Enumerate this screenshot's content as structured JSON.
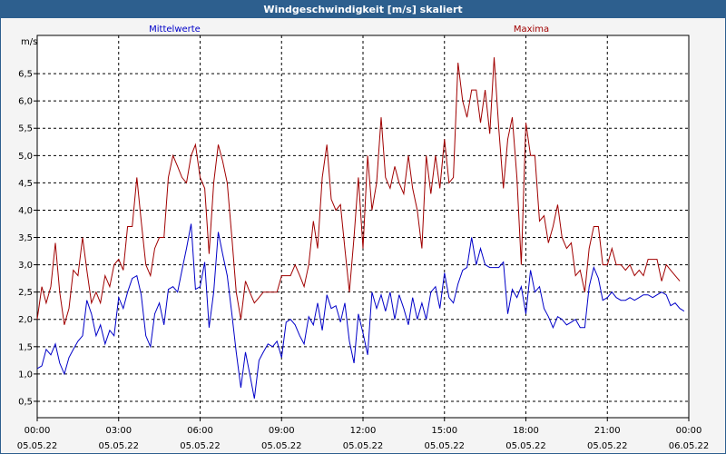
{
  "window": {
    "title": "Windgeschwindigkeit [m/s] skaliert"
  },
  "colors": {
    "title_bar": "#2d5f8e",
    "mean": "#0000c8",
    "max": "#a00000",
    "grid": "#000000"
  },
  "chart_data": {
    "type": "line",
    "title": "Windgeschwindigkeit [m/s] skaliert",
    "ylabel": "m/s",
    "xlabel": "",
    "ylim": [
      0.2,
      7.2
    ],
    "xlim_hours": [
      0,
      24
    ],
    "grid": true,
    "legend_position": "top",
    "x_ticks": [
      {
        "hour": 0,
        "time": "00:00",
        "date": "05.05.22"
      },
      {
        "hour": 3,
        "time": "03:00",
        "date": "05.05.22"
      },
      {
        "hour": 6,
        "time": "06:00",
        "date": "05.05.22"
      },
      {
        "hour": 9,
        "time": "09:00",
        "date": "05.05.22"
      },
      {
        "hour": 12,
        "time": "12:00",
        "date": "05.05.22"
      },
      {
        "hour": 15,
        "time": "15:00",
        "date": "05.05.22"
      },
      {
        "hour": 18,
        "time": "18:00",
        "date": "05.05.22"
      },
      {
        "hour": 21,
        "time": "21:00",
        "date": "05.05.22"
      },
      {
        "hour": 24,
        "time": "00:00",
        "date": "06.05.22"
      }
    ],
    "y_ticks": [
      0.5,
      1.0,
      1.5,
      2.0,
      2.5,
      3.0,
      3.5,
      4.0,
      4.5,
      5.0,
      5.5,
      6.0,
      6.5
    ],
    "y_tick_labels": [
      "0,5",
      "1,0",
      "1,5",
      "2,0",
      "2,5",
      "3,0",
      "3,5",
      "4,0",
      "4,5",
      "5,0",
      "5,5",
      "6,0",
      "6,5"
    ],
    "series": [
      {
        "name": "Mittelwerte",
        "color": "#0000c8",
        "points": [
          [
            0.0,
            1.1
          ],
          [
            0.17,
            1.15
          ],
          [
            0.33,
            1.45
          ],
          [
            0.5,
            1.35
          ],
          [
            0.67,
            1.55
          ],
          [
            0.83,
            1.2
          ],
          [
            1.0,
            1.0
          ],
          [
            1.17,
            1.3
          ],
          [
            1.33,
            1.45
          ],
          [
            1.5,
            1.6
          ],
          [
            1.67,
            1.7
          ],
          [
            1.83,
            2.35
          ],
          [
            2.0,
            2.1
          ],
          [
            2.17,
            1.7
          ],
          [
            2.33,
            1.9
          ],
          [
            2.5,
            1.55
          ],
          [
            2.67,
            1.8
          ],
          [
            2.83,
            1.7
          ],
          [
            3.0,
            2.4
          ],
          [
            3.17,
            2.2
          ],
          [
            3.33,
            2.5
          ],
          [
            3.5,
            2.75
          ],
          [
            3.67,
            2.8
          ],
          [
            3.83,
            2.45
          ],
          [
            4.0,
            1.7
          ],
          [
            4.17,
            1.5
          ],
          [
            4.33,
            2.1
          ],
          [
            4.5,
            2.3
          ],
          [
            4.67,
            1.9
          ],
          [
            4.83,
            2.55
          ],
          [
            5.0,
            2.6
          ],
          [
            5.17,
            2.5
          ],
          [
            5.33,
            2.9
          ],
          [
            5.5,
            3.3
          ],
          [
            5.67,
            3.75
          ],
          [
            5.83,
            2.55
          ],
          [
            6.0,
            2.6
          ],
          [
            6.17,
            3.05
          ],
          [
            6.33,
            1.85
          ],
          [
            6.5,
            2.5
          ],
          [
            6.67,
            3.6
          ],
          [
            6.83,
            3.2
          ],
          [
            7.0,
            2.8
          ],
          [
            7.17,
            2.1
          ],
          [
            7.33,
            1.4
          ],
          [
            7.5,
            0.75
          ],
          [
            7.67,
            1.4
          ],
          [
            7.83,
            1.0
          ],
          [
            8.0,
            0.55
          ],
          [
            8.17,
            1.25
          ],
          [
            8.33,
            1.4
          ],
          [
            8.5,
            1.55
          ],
          [
            8.67,
            1.5
          ],
          [
            8.83,
            1.6
          ],
          [
            9.0,
            1.3
          ],
          [
            9.17,
            1.95
          ],
          [
            9.33,
            2.0
          ],
          [
            9.5,
            1.9
          ],
          [
            9.67,
            1.7
          ],
          [
            9.83,
            1.55
          ],
          [
            10.0,
            2.05
          ],
          [
            10.17,
            1.9
          ],
          [
            10.33,
            2.3
          ],
          [
            10.5,
            1.8
          ],
          [
            10.67,
            2.45
          ],
          [
            10.83,
            2.2
          ],
          [
            11.0,
            2.25
          ],
          [
            11.17,
            1.95
          ],
          [
            11.33,
            2.3
          ],
          [
            11.5,
            1.6
          ],
          [
            11.67,
            1.2
          ],
          [
            11.83,
            2.1
          ],
          [
            12.0,
            1.75
          ],
          [
            12.17,
            1.35
          ],
          [
            12.33,
            2.5
          ],
          [
            12.5,
            2.2
          ],
          [
            12.67,
            2.45
          ],
          [
            12.83,
            2.15
          ],
          [
            13.0,
            2.5
          ],
          [
            13.17,
            2.0
          ],
          [
            13.33,
            2.45
          ],
          [
            13.5,
            2.2
          ],
          [
            13.67,
            1.9
          ],
          [
            13.83,
            2.4
          ],
          [
            14.0,
            2.0
          ],
          [
            14.17,
            2.3
          ],
          [
            14.33,
            2.0
          ],
          [
            14.5,
            2.5
          ],
          [
            14.67,
            2.6
          ],
          [
            14.83,
            2.2
          ],
          [
            15.0,
            2.85
          ],
          [
            15.17,
            2.4
          ],
          [
            15.33,
            2.3
          ],
          [
            15.5,
            2.65
          ],
          [
            15.67,
            2.9
          ],
          [
            15.83,
            2.95
          ],
          [
            16.0,
            3.5
          ],
          [
            16.17,
            3.0
          ],
          [
            16.33,
            3.3
          ],
          [
            16.5,
            3.0
          ],
          [
            16.67,
            2.95
          ],
          [
            16.83,
            2.95
          ],
          [
            17.0,
            2.95
          ],
          [
            17.17,
            3.05
          ],
          [
            17.33,
            2.1
          ],
          [
            17.5,
            2.55
          ],
          [
            17.67,
            2.4
          ],
          [
            17.83,
            2.6
          ],
          [
            18.0,
            2.1
          ],
          [
            18.17,
            2.9
          ],
          [
            18.33,
            2.5
          ],
          [
            18.5,
            2.6
          ],
          [
            18.67,
            2.2
          ],
          [
            18.83,
            2.05
          ],
          [
            19.0,
            1.85
          ],
          [
            19.17,
            2.05
          ],
          [
            19.33,
            2.0
          ],
          [
            19.5,
            1.9
          ],
          [
            19.67,
            1.95
          ],
          [
            19.83,
            2.0
          ],
          [
            20.0,
            1.85
          ],
          [
            20.17,
            1.85
          ],
          [
            20.33,
            2.6
          ],
          [
            20.5,
            2.95
          ],
          [
            20.67,
            2.75
          ],
          [
            20.83,
            2.35
          ],
          [
            21.0,
            2.4
          ],
          [
            21.17,
            2.5
          ],
          [
            21.33,
            2.4
          ],
          [
            21.5,
            2.35
          ],
          [
            21.67,
            2.35
          ],
          [
            21.83,
            2.4
          ],
          [
            22.0,
            2.35
          ],
          [
            22.17,
            2.4
          ],
          [
            22.33,
            2.45
          ],
          [
            22.5,
            2.45
          ],
          [
            22.67,
            2.4
          ],
          [
            22.83,
            2.45
          ],
          [
            23.0,
            2.5
          ],
          [
            23.17,
            2.45
          ],
          [
            23.33,
            2.25
          ],
          [
            23.5,
            2.3
          ],
          [
            23.67,
            2.2
          ],
          [
            23.83,
            2.15
          ]
        ]
      },
      {
        "name": "Maxima",
        "color": "#a00000",
        "points": [
          [
            0.0,
            2.0
          ],
          [
            0.17,
            2.6
          ],
          [
            0.33,
            2.3
          ],
          [
            0.5,
            2.6
          ],
          [
            0.67,
            3.4
          ],
          [
            0.83,
            2.5
          ],
          [
            1.0,
            1.9
          ],
          [
            1.17,
            2.2
          ],
          [
            1.33,
            2.9
          ],
          [
            1.5,
            2.8
          ],
          [
            1.67,
            3.5
          ],
          [
            1.83,
            2.9
          ],
          [
            2.0,
            2.3
          ],
          [
            2.17,
            2.5
          ],
          [
            2.33,
            2.3
          ],
          [
            2.5,
            2.8
          ],
          [
            2.67,
            2.6
          ],
          [
            2.83,
            3.0
          ],
          [
            3.0,
            3.1
          ],
          [
            3.17,
            2.9
          ],
          [
            3.33,
            3.7
          ],
          [
            3.5,
            3.7
          ],
          [
            3.67,
            4.6
          ],
          [
            3.83,
            3.8
          ],
          [
            4.0,
            3.0
          ],
          [
            4.17,
            2.8
          ],
          [
            4.33,
            3.3
          ],
          [
            4.5,
            3.5
          ],
          [
            4.67,
            3.5
          ],
          [
            4.83,
            4.6
          ],
          [
            5.0,
            5.0
          ],
          [
            5.17,
            4.8
          ],
          [
            5.33,
            4.6
          ],
          [
            5.5,
            4.5
          ],
          [
            5.67,
            5.0
          ],
          [
            5.83,
            5.2
          ],
          [
            6.0,
            4.6
          ],
          [
            6.17,
            4.4
          ],
          [
            6.33,
            3.2
          ],
          [
            6.5,
            4.5
          ],
          [
            6.67,
            5.2
          ],
          [
            6.83,
            4.9
          ],
          [
            7.0,
            4.5
          ],
          [
            7.17,
            3.5
          ],
          [
            7.33,
            2.5
          ],
          [
            7.5,
            2.0
          ],
          [
            7.67,
            2.7
          ],
          [
            7.83,
            2.5
          ],
          [
            8.0,
            2.3
          ],
          [
            8.17,
            2.4
          ],
          [
            8.33,
            2.5
          ],
          [
            8.5,
            2.5
          ],
          [
            8.67,
            2.5
          ],
          [
            8.83,
            2.5
          ],
          [
            9.0,
            2.8
          ],
          [
            9.17,
            2.8
          ],
          [
            9.33,
            2.8
          ],
          [
            9.5,
            3.0
          ],
          [
            9.67,
            2.8
          ],
          [
            9.83,
            2.6
          ],
          [
            10.0,
            3.0
          ],
          [
            10.17,
            3.8
          ],
          [
            10.33,
            3.3
          ],
          [
            10.5,
            4.6
          ],
          [
            10.67,
            5.2
          ],
          [
            10.83,
            4.2
          ],
          [
            11.0,
            4.0
          ],
          [
            11.17,
            4.1
          ],
          [
            11.33,
            3.3
          ],
          [
            11.5,
            2.5
          ],
          [
            11.67,
            3.5
          ],
          [
            11.83,
            4.6
          ],
          [
            12.0,
            3.3
          ],
          [
            12.17,
            5.0
          ],
          [
            12.33,
            4.0
          ],
          [
            12.5,
            4.5
          ],
          [
            12.67,
            5.7
          ],
          [
            12.83,
            4.6
          ],
          [
            13.0,
            4.4
          ],
          [
            13.17,
            4.8
          ],
          [
            13.33,
            4.5
          ],
          [
            13.5,
            4.3
          ],
          [
            13.67,
            5.0
          ],
          [
            13.83,
            4.4
          ],
          [
            14.0,
            4.0
          ],
          [
            14.17,
            3.3
          ],
          [
            14.33,
            5.0
          ],
          [
            14.5,
            4.3
          ],
          [
            14.67,
            5.0
          ],
          [
            14.83,
            4.4
          ],
          [
            15.0,
            5.3
          ],
          [
            15.17,
            4.5
          ],
          [
            15.33,
            4.6
          ],
          [
            15.5,
            6.7
          ],
          [
            15.67,
            6.0
          ],
          [
            15.83,
            5.7
          ],
          [
            16.0,
            6.2
          ],
          [
            16.17,
            6.2
          ],
          [
            16.33,
            5.6
          ],
          [
            16.5,
            6.2
          ],
          [
            16.67,
            5.4
          ],
          [
            16.83,
            6.8
          ],
          [
            17.0,
            5.5
          ],
          [
            17.17,
            4.4
          ],
          [
            17.33,
            5.3
          ],
          [
            17.5,
            5.7
          ],
          [
            17.67,
            4.6
          ],
          [
            17.83,
            3.0
          ],
          [
            18.0,
            5.6
          ],
          [
            18.17,
            5.0
          ],
          [
            18.33,
            5.0
          ],
          [
            18.5,
            3.8
          ],
          [
            18.67,
            3.9
          ],
          [
            18.83,
            3.4
          ],
          [
            19.0,
            3.7
          ],
          [
            19.17,
            4.1
          ],
          [
            19.33,
            3.5
          ],
          [
            19.5,
            3.3
          ],
          [
            19.67,
            3.4
          ],
          [
            19.83,
            2.8
          ],
          [
            20.0,
            2.9
          ],
          [
            20.17,
            2.5
          ],
          [
            20.33,
            3.3
          ],
          [
            20.5,
            3.7
          ],
          [
            20.67,
            3.7
          ],
          [
            20.83,
            3.0
          ],
          [
            21.0,
            3.0
          ],
          [
            21.17,
            3.3
          ],
          [
            21.33,
            3.0
          ],
          [
            21.5,
            3.0
          ],
          [
            21.67,
            2.9
          ],
          [
            21.83,
            3.0
          ],
          [
            22.0,
            2.8
          ],
          [
            22.17,
            2.9
          ],
          [
            22.33,
            2.8
          ],
          [
            22.5,
            3.1
          ],
          [
            22.67,
            3.1
          ],
          [
            22.83,
            3.1
          ],
          [
            23.0,
            2.7
          ],
          [
            23.17,
            3.0
          ],
          [
            23.33,
            2.9
          ],
          [
            23.5,
            2.8
          ],
          [
            23.67,
            2.7
          ]
        ]
      }
    ]
  }
}
